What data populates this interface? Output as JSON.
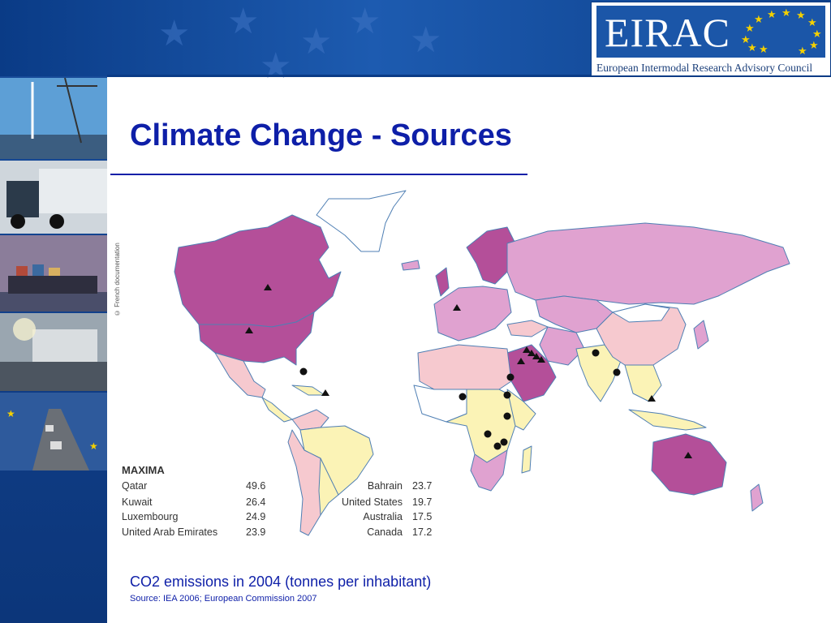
{
  "slide": {
    "title": "Climate Change - Sources",
    "caption": "CO2 emissions in 2004 (tonnes per inhabitant)",
    "source": "Source: IEA 2006; European Commission 2007"
  },
  "logo": {
    "name": "EIRAC",
    "subtitle": "European Intermodal Research Advisory Council"
  },
  "map": {
    "credit": "© French documentation",
    "colors": {
      "ocean": "#ffffff",
      "very_high": "#b44f99",
      "high": "#e0a2d0",
      "medium": "#f6c9cf",
      "low": "#fbf3b6",
      "very_low": "#ffffff",
      "coast": "#4f7fb4"
    },
    "markers_note": ""
  },
  "maxima": {
    "heading": "MAXIMA",
    "left": [
      {
        "country": "Qatar",
        "value": "49.6"
      },
      {
        "country": "Kuwait",
        "value": "26.4"
      },
      {
        "country": "Luxembourg",
        "value": "24.9"
      },
      {
        "country": "United Arab Emirates",
        "value": "23.9"
      }
    ],
    "right": [
      {
        "country": "Bahrain",
        "value": "23.7"
      },
      {
        "country": "United States",
        "value": "19.7"
      },
      {
        "country": "Australia",
        "value": "17.5"
      },
      {
        "country": "Canada",
        "value": "17.2"
      }
    ]
  },
  "decor": {
    "photos": [
      "port-photo",
      "crane-photo",
      "truck-photo",
      "ship-photo",
      "trailer-photo",
      "highway-photo"
    ]
  }
}
